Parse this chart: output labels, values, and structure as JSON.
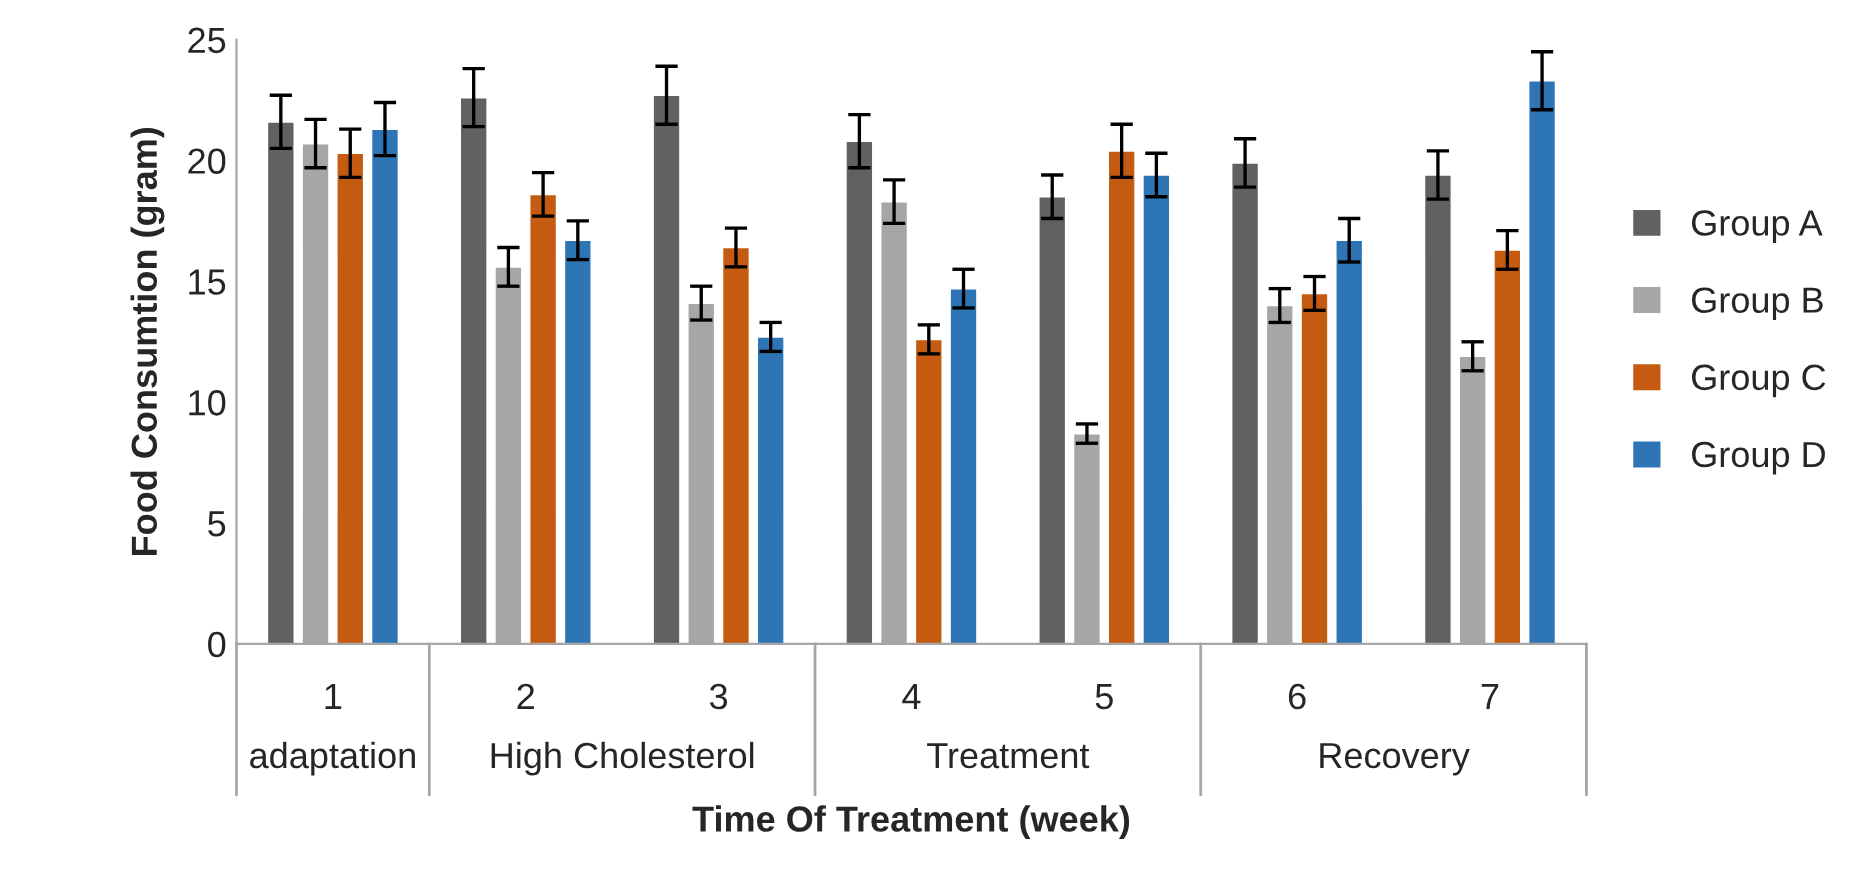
{
  "chart_data": {
    "type": "bar",
    "xlabel": "Time Of Treatment (week)",
    "ylabel": "Food Consumtion (gram)",
    "categories": [
      "1",
      "2",
      "3",
      "4",
      "5",
      "6",
      "7"
    ],
    "series": [
      {
        "name": "Group A",
        "color": "#616161",
        "values": [
          21.6,
          22.6,
          22.7,
          20.8,
          18.5,
          19.9,
          19.4
        ],
        "errors": [
          1.1,
          1.2,
          1.2,
          1.1,
          0.9,
          1.0,
          1.0
        ]
      },
      {
        "name": "Group B",
        "color": "#a6a6a6",
        "values": [
          20.7,
          15.6,
          14.1,
          18.3,
          8.7,
          14.0,
          11.9
        ],
        "errors": [
          1.0,
          0.8,
          0.7,
          0.9,
          0.4,
          0.7,
          0.6
        ]
      },
      {
        "name": "Group C",
        "color": "#c55a11",
        "values": [
          20.3,
          18.6,
          16.4,
          12.6,
          20.4,
          14.5,
          16.3
        ],
        "errors": [
          1.0,
          0.9,
          0.8,
          0.6,
          1.1,
          0.7,
          0.8
        ]
      },
      {
        "name": "Group D",
        "color": "#2e75b6",
        "values": [
          21.3,
          16.7,
          12.7,
          14.7,
          19.4,
          16.7,
          23.3
        ],
        "errors": [
          1.1,
          0.8,
          0.6,
          0.8,
          0.9,
          0.9,
          1.2
        ]
      }
    ],
    "annotations": [
      "adaptation",
      "High Cholesterol",
      "Treatment",
      "Recovery"
    ],
    "ylim": [
      0,
      25
    ],
    "yticks": [
      0,
      5,
      10,
      15,
      20,
      25
    ],
    "grid": false,
    "legend": "right"
  }
}
